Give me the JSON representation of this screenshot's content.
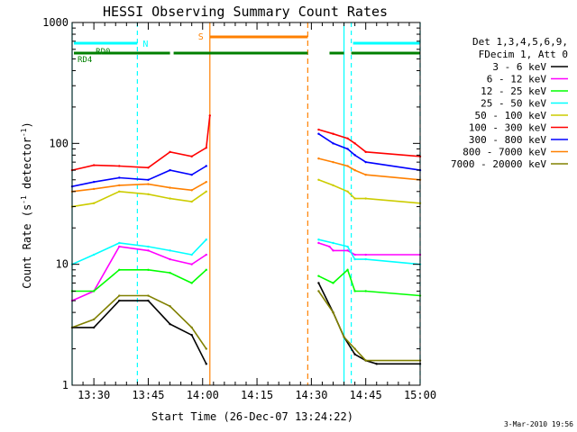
{
  "chart_data": {
    "type": "line",
    "title": "HESSI Observing Summary Count Rates",
    "xlabel": "Start Time (26-Dec-07 13:24:22)",
    "ylabel_main": "Count Rate (s",
    "ylabel_sup1": "-1",
    "ylabel_mid": " detector",
    "ylabel_sup2": "-1",
    "ylabel_end": ")",
    "y_scale": "log",
    "ylim": [
      1,
      1000
    ],
    "xlim": [
      "13:24",
      "15:00"
    ],
    "x_ticks": [
      "13:30",
      "13:45",
      "14:00",
      "14:15",
      "14:30",
      "14:45",
      "15:00"
    ],
    "y_ticks": [
      "1",
      "10",
      "100",
      "1000"
    ],
    "legend_title_1": "Det 1,3,4,5,6,9,",
    "legend_title_2": "FDecim 1, Att 0",
    "legend_position": "right, outside plot",
    "footer_date": "3-Mar-2010 19:56",
    "flags": {
      "rd0_label": "RD0",
      "rd4_label": "RD4",
      "n_label": "N",
      "s_label": "S",
      "n_color": "#00ffff",
      "s_color": "#ff8000",
      "rd0_color": "#008000",
      "rd4_color": "#008000",
      "n_intervals": [
        [
          "13:24",
          "13:42"
        ],
        [
          "14:41",
          "15:00"
        ]
      ],
      "s_intervals": [
        [
          "14:02",
          "14:29"
        ]
      ],
      "rd0_intervals": [
        [
          "13:24",
          "13:32"
        ]
      ],
      "rd4_intervals": [
        [
          "13:32",
          "13:51"
        ],
        [
          "13:52",
          "14:29"
        ],
        [
          "14:35",
          "14:39"
        ],
        [
          "14:41",
          "15:00"
        ]
      ]
    },
    "night_lines": {
      "color": "#00ffff",
      "x": [
        "13:42",
        "14:41",
        "15:00"
      ]
    },
    "day_lines": {
      "color": "#00ffff",
      "x": [
        "13:24",
        "14:39"
      ]
    },
    "saa_lines": {
      "color": "#ff8000",
      "x": [
        "14:02",
        "14:29"
      ]
    },
    "series": [
      {
        "name": "3 - 6 keV",
        "color": "#000000",
        "segments": [
          {
            "x": [
              "13:24",
              "13:30",
              "13:37",
              "13:45",
              "13:51",
              "13:57",
              "14:01"
            ],
            "y": [
              3,
              3,
              5,
              5,
              3.2,
              2.6,
              1.5
            ]
          },
          {
            "x": [
              "14:32",
              "14:36",
              "14:39",
              "14:42",
              "14:45",
              "14:48",
              "15:00"
            ],
            "y": [
              7,
              4,
              2.5,
              1.8,
              1.6,
              1.5,
              1.5
            ]
          }
        ]
      },
      {
        "name": "6 - 12 keV",
        "color": "#ff00ff",
        "segments": [
          {
            "x": [
              "13:24",
              "13:30",
              "13:37",
              "13:45",
              "13:51",
              "13:57",
              "14:01"
            ],
            "y": [
              5,
              6,
              14,
              13,
              11,
              10,
              12
            ]
          },
          {
            "x": [
              "14:32",
              "14:35",
              "14:36",
              "14:40",
              "14:42",
              "14:45",
              "15:00"
            ],
            "y": [
              15,
              14,
              13,
              13,
              12,
              12,
              12
            ]
          }
        ]
      },
      {
        "name": "12 - 25 keV",
        "color": "#00ff00",
        "segments": [
          {
            "x": [
              "13:24",
              "13:30",
              "13:37",
              "13:45",
              "13:51",
              "13:57",
              "14:01"
            ],
            "y": [
              6,
              6,
              9,
              9,
              8.5,
              7,
              9
            ]
          },
          {
            "x": [
              "14:32",
              "14:36",
              "14:40",
              "14:42",
              "14:45",
              "15:00"
            ],
            "y": [
              8,
              7,
              9,
              6,
              6,
              5.5
            ]
          }
        ]
      },
      {
        "name": "25 - 50 keV",
        "color": "#00ffff",
        "segments": [
          {
            "x": [
              "13:24",
              "13:30",
              "13:37",
              "13:45",
              "13:51",
              "13:57",
              "14:01"
            ],
            "y": [
              10,
              12,
              15,
              14,
              13,
              12,
              16
            ]
          },
          {
            "x": [
              "14:32",
              "14:36",
              "14:40",
              "14:42",
              "14:45",
              "15:00"
            ],
            "y": [
              16,
              15,
              14,
              11,
              11,
              10
            ]
          }
        ]
      },
      {
        "name": "50 - 100 keV",
        "color": "#cccc00",
        "segments": [
          {
            "x": [
              "13:24",
              "13:30",
              "13:37",
              "13:45",
              "13:51",
              "13:57",
              "14:01"
            ],
            "y": [
              30,
              32,
              40,
              38,
              35,
              33,
              40
            ]
          },
          {
            "x": [
              "14:32",
              "14:36",
              "14:40",
              "14:42",
              "14:45",
              "15:00"
            ],
            "y": [
              50,
              45,
              40,
              35,
              35,
              32
            ]
          }
        ]
      },
      {
        "name": "100 - 300 keV",
        "color": "#ff0000",
        "segments": [
          {
            "x": [
              "13:24",
              "13:30",
              "13:37",
              "13:45",
              "13:51",
              "13:57",
              "14:01",
              "14:02"
            ],
            "y": [
              60,
              66,
              65,
              63,
              85,
              78,
              92,
              170
            ]
          },
          {
            "x": [
              "14:32",
              "14:36",
              "14:40",
              "14:42",
              "14:45",
              "15:00"
            ],
            "y": [
              130,
              120,
              110,
              100,
              85,
              78
            ]
          }
        ]
      },
      {
        "name": "300 - 800 keV",
        "color": "#0000ff",
        "segments": [
          {
            "x": [
              "13:24",
              "13:30",
              "13:37",
              "13:45",
              "13:51",
              "13:57",
              "14:01"
            ],
            "y": [
              44,
              48,
              52,
              50,
              60,
              55,
              65
            ]
          },
          {
            "x": [
              "14:32",
              "14:36",
              "14:40",
              "14:42",
              "14:45",
              "15:00"
            ],
            "y": [
              120,
              100,
              90,
              80,
              70,
              60
            ]
          }
        ]
      },
      {
        "name": "800 - 7000 keV",
        "color": "#ff8000",
        "segments": [
          {
            "x": [
              "13:24",
              "13:30",
              "13:37",
              "13:45",
              "13:51",
              "13:57",
              "14:01"
            ],
            "y": [
              40,
              42,
              45,
              46,
              43,
              41,
              48
            ]
          },
          {
            "x": [
              "14:32",
              "14:36",
              "14:40",
              "14:42",
              "14:45",
              "15:00"
            ],
            "y": [
              75,
              70,
              65,
              60,
              55,
              50
            ]
          }
        ]
      },
      {
        "name": "7000 - 20000 keV",
        "color": "#808000",
        "segments": [
          {
            "x": [
              "13:24",
              "13:30",
              "13:37",
              "13:45",
              "13:51",
              "13:57",
              "14:01"
            ],
            "y": [
              3,
              3.5,
              5.5,
              5.5,
              4.5,
              3,
              2
            ]
          },
          {
            "x": [
              "14:32",
              "14:36",
              "14:39",
              "14:42",
              "14:45",
              "15:00"
            ],
            "y": [
              6,
              4,
              2.5,
              2,
              1.6,
              1.6
            ]
          }
        ]
      }
    ]
  }
}
